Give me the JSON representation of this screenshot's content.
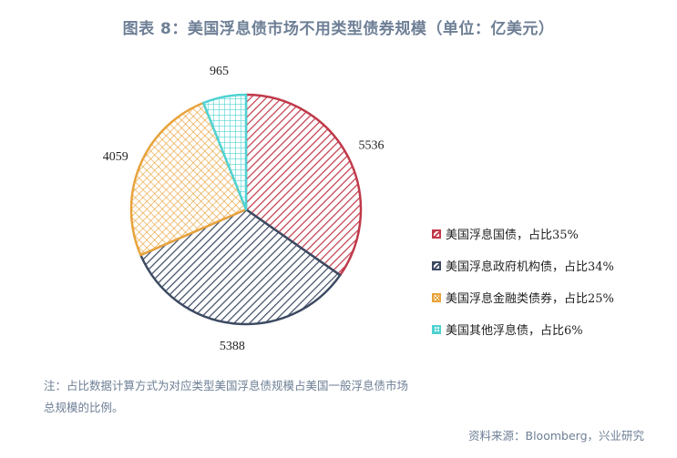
{
  "title": "图表 8：美国浮息债市场不用类型债券规模（单位：亿美元）",
  "note": "注：占比数据计算方式为对应类型美国浮息债规模占美国一般浮息债市场总规模的比例。",
  "source": "资料来源：Bloomberg，兴业研究",
  "chart_data": {
    "type": "pie",
    "title": "图表 8：美国浮息债市场不用类型债券规模（单位：亿美元）",
    "unit": "亿美元",
    "slices": [
      {
        "name": "美国浮息国债，占比35%",
        "value": 5536,
        "label": "5536",
        "color": "#c0394a",
        "pattern": "diagonal-hatch"
      },
      {
        "name": "美国浮息政府机构债，占比34%",
        "value": 5388,
        "label": "5388",
        "color": "#3c4a62",
        "pattern": "diagonal-hatch"
      },
      {
        "name": "美国浮息金融类债券，占比25%",
        "value": 4059,
        "label": "4059",
        "color": "#e8a33c",
        "pattern": "cross-hatch"
      },
      {
        "name": "美国其他浮息债，占比6%",
        "value": 965,
        "label": "965",
        "color": "#4fd2d2",
        "pattern": "grid"
      }
    ],
    "start_angle_deg": 0,
    "direction": "clockwise",
    "legend_position": "right"
  }
}
